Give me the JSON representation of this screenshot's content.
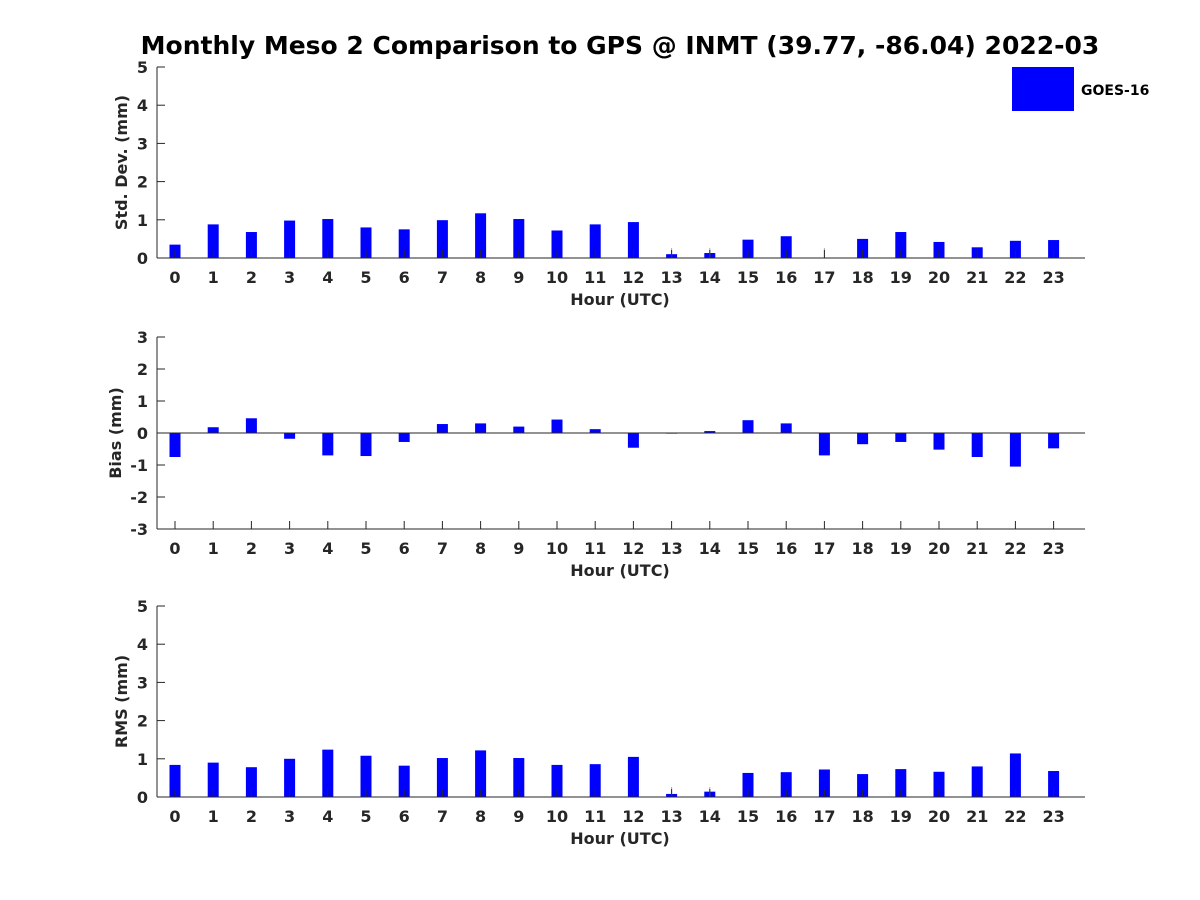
{
  "title": "Monthly Meso 2 Comparison to GPS @ INMT (39.77, -86.04) 2022-03",
  "legend": {
    "label": "GOES-16",
    "position": "top-right"
  },
  "colors": {
    "bar": "#0000ff",
    "axis": "#262626",
    "errorbar": "#aaaaaa"
  },
  "chart_data": [
    {
      "type": "bar",
      "xlabel": "Hour (UTC)",
      "ylabel": "Std. Dev. (mm)",
      "ylim": [
        0,
        5
      ],
      "yticks": [
        0,
        1,
        2,
        3,
        4,
        5
      ],
      "grid": false,
      "categories": [
        "0",
        "1",
        "2",
        "3",
        "4",
        "5",
        "6",
        "7",
        "8",
        "9",
        "10",
        "11",
        "12",
        "13",
        "14",
        "15",
        "16",
        "17",
        "18",
        "19",
        "20",
        "21",
        "22",
        "23"
      ],
      "series": [
        {
          "name": "GOES-16",
          "values": [
            0.35,
            0.88,
            0.68,
            0.98,
            1.02,
            0.8,
            0.75,
            0.99,
            1.17,
            1.02,
            0.72,
            0.88,
            0.94,
            0.1,
            0.13,
            0.48,
            0.57,
            0.0,
            0.5,
            0.68,
            0.42,
            0.28,
            0.45,
            0.47
          ]
        }
      ]
    },
    {
      "type": "bar",
      "xlabel": "Hour (UTC)",
      "ylabel": "Bias (mm)",
      "ylim": [
        -3,
        3
      ],
      "yticks": [
        -3,
        -2,
        -1,
        0,
        1,
        2,
        3
      ],
      "grid": false,
      "categories": [
        "0",
        "1",
        "2",
        "3",
        "4",
        "5",
        "6",
        "7",
        "8",
        "9",
        "10",
        "11",
        "12",
        "13",
        "14",
        "15",
        "16",
        "17",
        "18",
        "19",
        "20",
        "21",
        "22",
        "23"
      ],
      "series": [
        {
          "name": "GOES-16",
          "values": [
            -0.75,
            0.18,
            0.46,
            -0.18,
            -0.7,
            -0.72,
            -0.28,
            0.28,
            0.3,
            0.2,
            0.42,
            0.12,
            -0.46,
            -0.02,
            0.06,
            0.4,
            0.3,
            -0.7,
            -0.35,
            -0.28,
            -0.52,
            -0.75,
            -1.05,
            -0.48
          ]
        }
      ]
    },
    {
      "type": "bar",
      "xlabel": "Hour (UTC)",
      "ylabel": "RMS (mm)",
      "ylim": [
        0,
        5
      ],
      "yticks": [
        0,
        1,
        2,
        3,
        4,
        5
      ],
      "grid": false,
      "categories": [
        "0",
        "1",
        "2",
        "3",
        "4",
        "5",
        "6",
        "7",
        "8",
        "9",
        "10",
        "11",
        "12",
        "13",
        "14",
        "15",
        "16",
        "17",
        "18",
        "19",
        "20",
        "21",
        "22",
        "23"
      ],
      "series": [
        {
          "name": "GOES-16",
          "values": [
            0.84,
            0.9,
            0.78,
            1.0,
            1.24,
            1.08,
            0.82,
            1.02,
            1.22,
            1.02,
            0.84,
            0.86,
            1.05,
            0.08,
            0.14,
            0.63,
            0.65,
            0.72,
            0.6,
            0.73,
            0.66,
            0.8,
            1.14,
            0.68
          ]
        }
      ]
    }
  ]
}
